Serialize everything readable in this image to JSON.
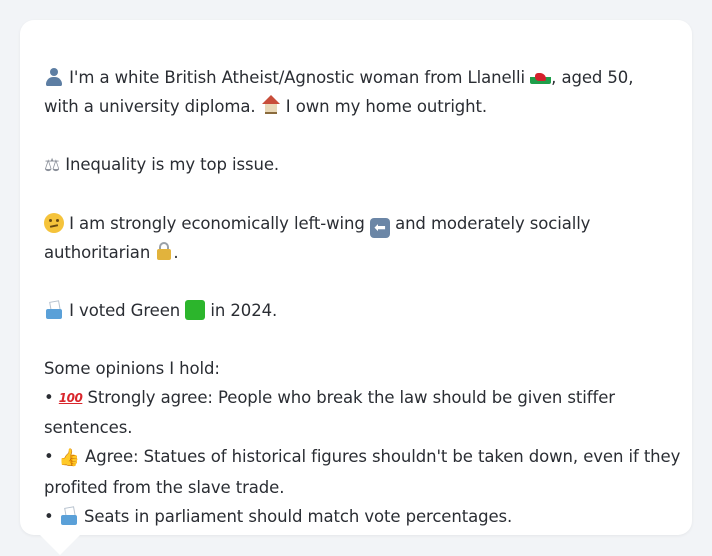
{
  "profile": {
    "line1_text": " I'm a white British Atheist/Agnostic woman from Llanelli ",
    "line1_tail": ", aged 50,",
    "line2_text": "with a university diploma. ",
    "line2_tail": " I own my home outright.",
    "issue_text": " Inequality is my top issue.",
    "politics_line1_a": " I am strongly economically left-wing ",
    "politics_line1_b": " and moderately socially",
    "politics_line2": "authoritarian ",
    "politics_line2_end": ".",
    "vote_a": " I voted Green ",
    "vote_b": " in 2024."
  },
  "opinions": {
    "heading": "Some opinions I hold:",
    "bullet": "•",
    "items": [
      {
        "icon": "hundred-points-icon",
        "line1": " Strongly agree: People who break the law should be given stiffer",
        "line2": "sentences."
      },
      {
        "icon": "thumbs-up-icon",
        "line1": " Agree: Statues of historical figures shouldn't be taken down, even if they",
        "line2": "profited from the slave trade."
      },
      {
        "icon": "ballot-box-icon",
        "line1": " Seats in parliament should match vote percentages.",
        "line2": ""
      }
    ]
  },
  "icons": {
    "scales_glyph": "⚖",
    "arrow_glyph": "⬅",
    "hundred_glyph": "100",
    "thumbs_glyph": "👍"
  },
  "colors": {
    "card_background": "#ffffff",
    "page_background": "#f2f4f7",
    "text": "#2a2d33",
    "green_square": "#2cb52c"
  }
}
